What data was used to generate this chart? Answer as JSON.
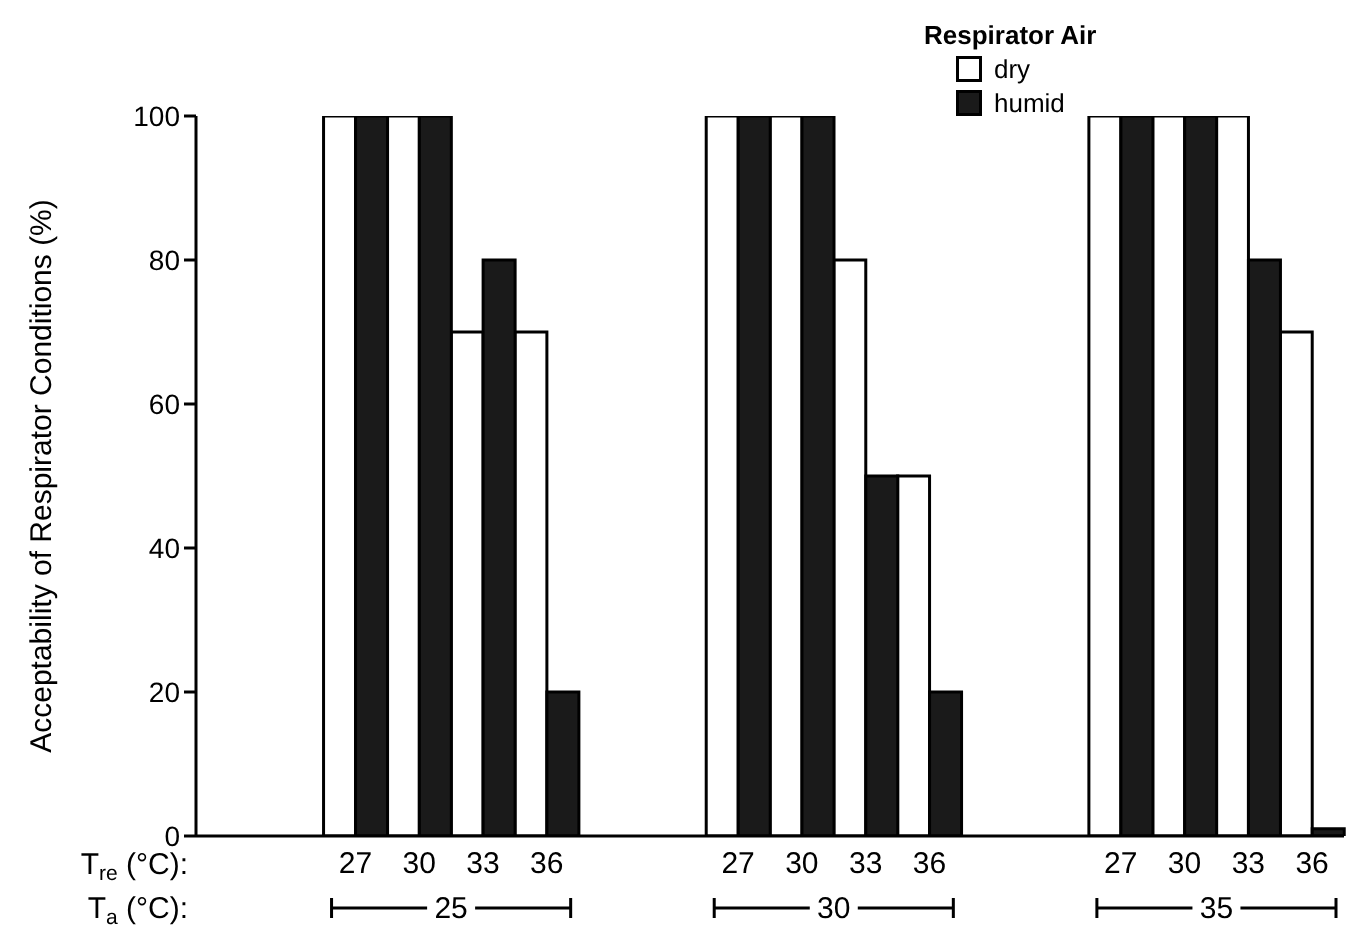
{
  "chart_data": {
    "type": "bar",
    "ylabel": "Acceptability of Respirator Conditions (%)",
    "legend_title": "Respirator Air",
    "categories": [
      null,
      null,
      "27",
      "30",
      "33",
      "36",
      null,
      null,
      "27",
      "30",
      "33",
      "36",
      null,
      null,
      "27",
      "30",
      "33",
      "36"
    ],
    "series": [
      {
        "name": "dry",
        "color": "#ffffff",
        "values": [
          null,
          null,
          100,
          100,
          70,
          70,
          null,
          null,
          100,
          100,
          80,
          50,
          null,
          null,
          100,
          100,
          100,
          70
        ]
      },
      {
        "name": "humid",
        "color": "#1a1a1a",
        "values": [
          null,
          null,
          100,
          100,
          80,
          20,
          null,
          null,
          100,
          100,
          50,
          20,
          null,
          null,
          100,
          100,
          80,
          1
        ]
      }
    ],
    "ylim": [
      0,
      100
    ],
    "yticks": [
      0,
      20,
      40,
      60,
      80,
      100
    ],
    "grid": false,
    "legend": "top right",
    "annotations": [
      "T$_{re}$ (°C):",
      "T$_{a}$ (°C):",
      "25",
      "30",
      "35"
    ]
  }
}
